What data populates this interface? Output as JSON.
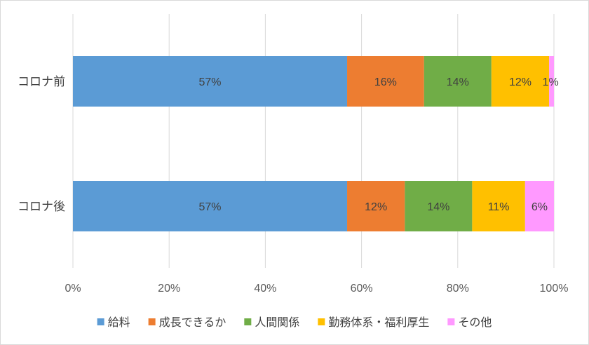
{
  "chart_data": {
    "type": "bar",
    "orientation": "horizontal",
    "stacked": true,
    "percent_stacked": true,
    "categories": [
      "コロナ前",
      "コロナ後"
    ],
    "series": [
      {
        "name": "給料",
        "values": [
          57,
          57
        ],
        "labels": [
          "57%",
          "57%"
        ],
        "color": "#5b9bd5"
      },
      {
        "name": "成長できるか",
        "values": [
          16,
          12
        ],
        "labels": [
          "16%",
          "12%"
        ],
        "color": "#ed7d31"
      },
      {
        "name": "人間関係",
        "values": [
          14,
          14
        ],
        "labels": [
          "14%",
          "14%"
        ],
        "color": "#70ad47"
      },
      {
        "name": "勤務体系・福利厚生",
        "values": [
          12,
          11
        ],
        "labels": [
          "12%",
          "11%"
        ],
        "color": "#ffc000"
      },
      {
        "name": "その他",
        "values": [
          1,
          6
        ],
        "labels": [
          "1%",
          "6%"
        ],
        "color": "#ff99ff"
      }
    ],
    "xlim": [
      0,
      100
    ],
    "x_ticks": [
      "0%",
      "20%",
      "40%",
      "60%",
      "80%",
      "100%"
    ],
    "title": "",
    "xlabel": "",
    "ylabel": "",
    "grid": true,
    "legend_position": "bottom"
  }
}
